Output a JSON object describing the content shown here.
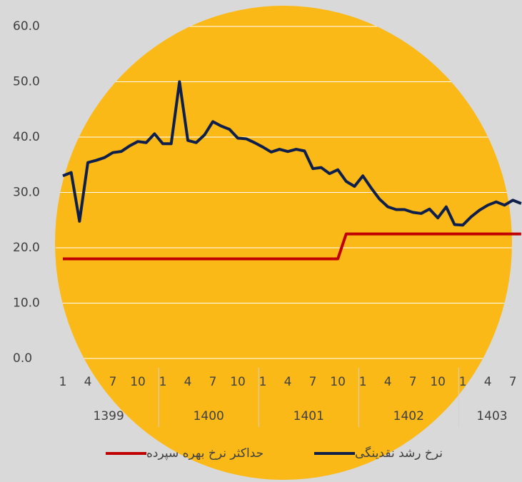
{
  "chart_data": {
    "type": "line",
    "categories": [
      "1",
      null,
      null,
      "4",
      null,
      null,
      "7",
      null,
      null,
      "10",
      null,
      null,
      "1",
      null,
      null,
      "4",
      null,
      null,
      "7",
      null,
      null,
      "10",
      null,
      null,
      "1",
      null,
      null,
      "4",
      null,
      null,
      "7",
      null,
      null,
      "10",
      null,
      null,
      "1",
      null,
      null,
      "4",
      null,
      null,
      "7",
      null,
      null,
      "10",
      null,
      null,
      "1",
      null,
      null,
      "4",
      null,
      null,
      "7",
      null
    ],
    "year_groups": [
      "1399",
      "1400",
      "1401",
      "1402",
      "1403"
    ],
    "series": [
      {
        "name": "حداکثر نرخ بهره سپرده",
        "color": "#c00000",
        "values": [
          18,
          18,
          18,
          18,
          18,
          18,
          18,
          18,
          18,
          18,
          18,
          18,
          18,
          18,
          18,
          18,
          18,
          18,
          18,
          18,
          18,
          18,
          18,
          18,
          18,
          18,
          18,
          18,
          18,
          18,
          18,
          18,
          18,
          18,
          22.5,
          22.5,
          22.5,
          22.5,
          22.5,
          22.5,
          22.5,
          22.5,
          22.5,
          22.5,
          22.5,
          22.5,
          22.5,
          22.5,
          22.5,
          22.5,
          22.5,
          22.5,
          22.5,
          22.5,
          22.5,
          22.5
        ]
      },
      {
        "name": "نرخ رشد نقدینگی",
        "color": "#0d1f4a",
        "values": [
          33,
          33.6,
          24.8,
          35.4,
          35.8,
          36.3,
          37.2,
          37.4,
          38.4,
          39.2,
          39.0,
          40.6,
          38.8,
          38.8,
          50.0,
          39.4,
          39.0,
          40.4,
          42.8,
          42.0,
          41.4,
          39.8,
          39.7,
          39.0,
          38.2,
          37.3,
          37.8,
          37.4,
          37.8,
          37.5,
          34.3,
          34.5,
          33.4,
          34.1,
          32.0,
          31.1,
          33.0,
          30.8,
          28.8,
          27.4,
          26.9,
          26.9,
          26.4,
          26.2,
          27.0,
          25.4,
          27.4,
          24.2,
          24.1,
          25.6,
          26.8,
          27.7,
          28.3,
          27.7,
          28.6,
          28.0
        ]
      }
    ],
    "ylim": [
      0,
      60
    ],
    "yticks": [
      {
        "value": 0,
        "label": "0.0"
      },
      {
        "value": 10,
        "label": "10.0"
      },
      {
        "value": 20,
        "label": "20.0"
      },
      {
        "value": 30,
        "label": "30.0"
      },
      {
        "value": 40,
        "label": "40.0"
      },
      {
        "value": 50,
        "label": "50.0"
      },
      {
        "value": 60,
        "label": "60.0"
      }
    ],
    "grid": true
  }
}
